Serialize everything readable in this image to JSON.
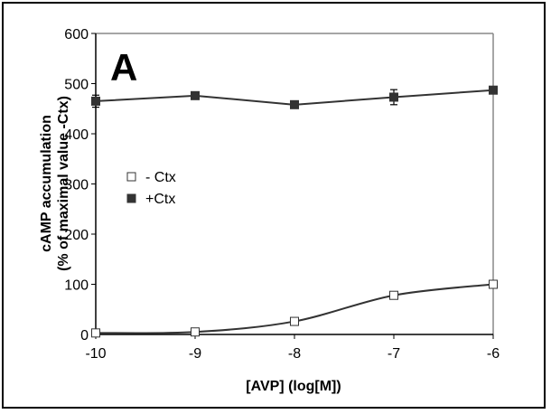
{
  "chart_data": {
    "type": "line",
    "panel_label": "A",
    "xlabel": "[AVP] (log[M])",
    "ylabel_line1": "cAMP accumulation",
    "ylabel_line2": "(% of maximal value -Ctx)",
    "xlim": [
      -10,
      -6
    ],
    "ylim": [
      0,
      600
    ],
    "x_ticks": [
      -10,
      -9,
      -8,
      -7,
      -6
    ],
    "y_ticks": [
      0,
      100,
      200,
      300,
      400,
      500,
      600
    ],
    "grid": false,
    "legend_position": "middle-left",
    "series": [
      {
        "name": "- Ctx",
        "marker": "open-square",
        "x": [
          -10,
          -9,
          -8,
          -7,
          -6
        ],
        "y": [
          3,
          5,
          26,
          78,
          100
        ],
        "err": [
          0,
          0,
          0,
          0,
          0
        ]
      },
      {
        "name": "+Ctx",
        "marker": "filled-square",
        "x": [
          -10,
          -9,
          -8,
          -7,
          -6
        ],
        "y": [
          465,
          476,
          458,
          473,
          487
        ],
        "err": [
          12,
          5,
          6,
          15,
          5
        ]
      }
    ],
    "colors": {
      "line": "#333333",
      "frame": "#888888",
      "marker_fill": "#333333"
    }
  }
}
